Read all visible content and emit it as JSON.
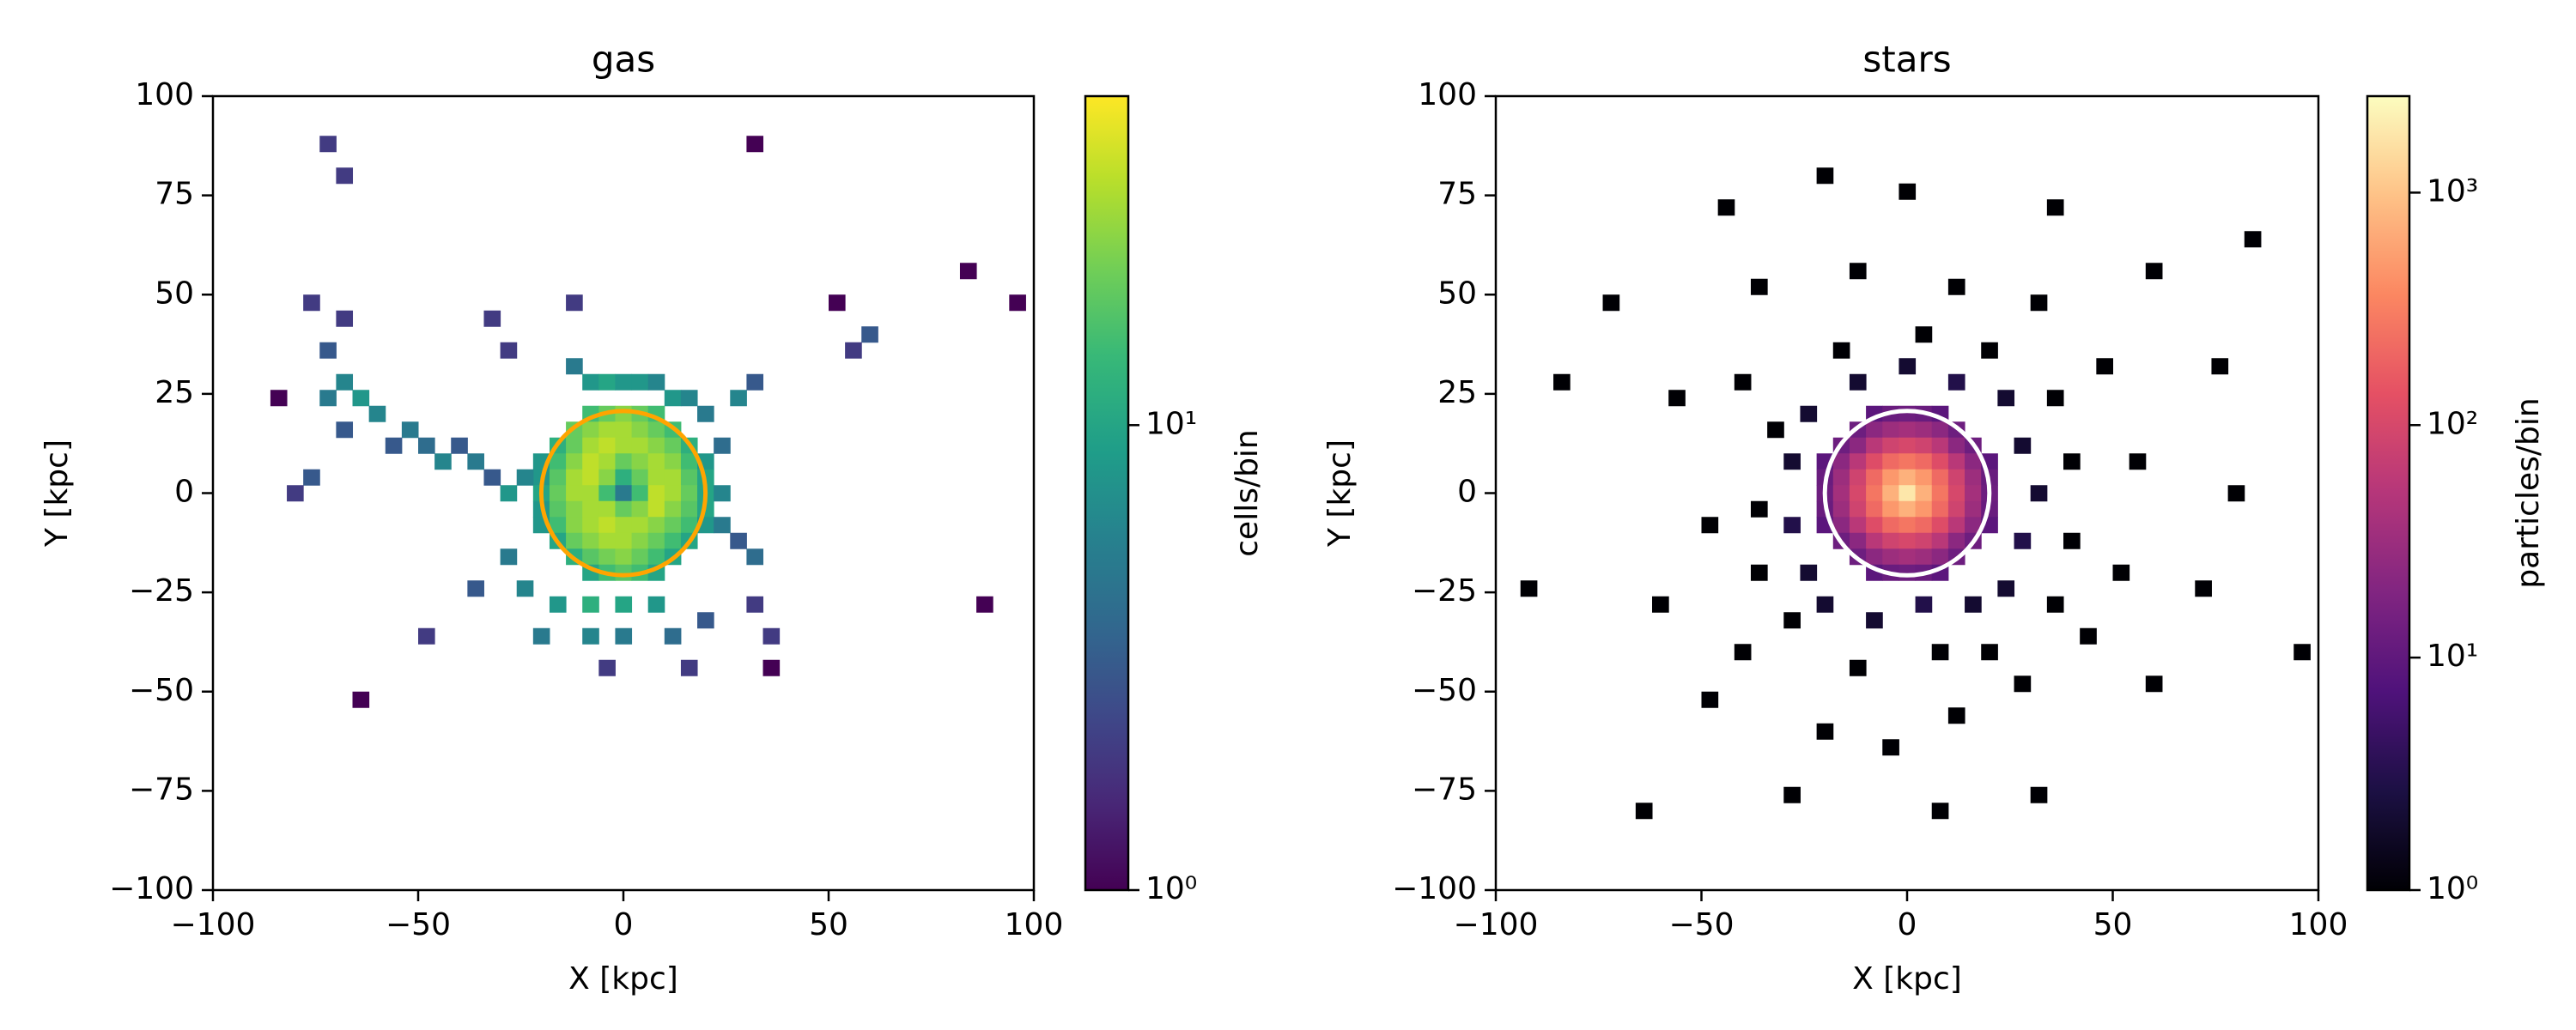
{
  "chart_data": [
    {
      "type": "heatmap",
      "title": "gas",
      "xlabel": "X [kpc]",
      "ylabel": "Y [kpc]",
      "xlim": [
        -100,
        100
      ],
      "ylim": [
        -100,
        100
      ],
      "xticks": [
        {
          "value": -100,
          "label": "−100"
        },
        {
          "value": -50,
          "label": "−50"
        },
        0,
        50,
        100
      ],
      "yticks": [
        {
          "value": -100,
          "label": "−100"
        },
        {
          "value": -75,
          "label": "−75"
        },
        {
          "value": -50,
          "label": "−50"
        },
        {
          "value": -25,
          "label": "−25"
        },
        0,
        25,
        50,
        75,
        100
      ],
      "bin_width": 4,
      "colormap": "viridis",
      "x": [
        -8,
        -4,
        0,
        4,
        8,
        -12,
        -8,
        -4,
        0,
        4,
        8,
        12,
        -16,
        -12,
        -8,
        -4,
        0,
        4,
        8,
        12,
        16,
        -20,
        -16,
        -12,
        -8,
        -4,
        0,
        4,
        8,
        12,
        16,
        20,
        -20,
        -16,
        -12,
        -8,
        -4,
        0,
        4,
        8,
        12,
        16,
        20,
        -20,
        -16,
        -12,
        -8,
        -4,
        0,
        4,
        8,
        12,
        16,
        20,
        -20,
        -16,
        -12,
        -8,
        -4,
        0,
        4,
        8,
        12,
        16,
        20,
        -20,
        -16,
        -12,
        -8,
        -4,
        0,
        4,
        8,
        12,
        16,
        20,
        -16,
        -12,
        -8,
        -4,
        0,
        4,
        8,
        12,
        16,
        -12,
        -8,
        -4,
        0,
        4,
        8,
        12,
        -8,
        -4,
        0,
        4,
        8,
        -24,
        -28,
        -32,
        -36,
        -40,
        -44,
        -48,
        -52,
        -56,
        -60,
        -64,
        -68,
        -72,
        -68,
        -72,
        -68,
        -76,
        -80,
        -76,
        -84,
        -12,
        -8,
        -4,
        0,
        4,
        8,
        12,
        16,
        20,
        28,
        32,
        -12,
        -28,
        -32,
        -72,
        -68,
        24,
        24,
        24,
        28,
        32,
        32,
        36,
        36,
        -36,
        -28,
        -24,
        -16,
        -8,
        0,
        8,
        -20,
        -8,
        0,
        12,
        20,
        16,
        -4,
        -48,
        -64,
        60,
        56,
        84,
        96,
        88,
        32,
        52
      ],
      "y": [
        20,
        20,
        20,
        20,
        20,
        16,
        16,
        16,
        16,
        16,
        16,
        16,
        12,
        12,
        12,
        12,
        12,
        12,
        12,
        12,
        12,
        8,
        8,
        8,
        8,
        8,
        8,
        8,
        8,
        8,
        8,
        8,
        4,
        4,
        4,
        4,
        4,
        4,
        4,
        4,
        4,
        4,
        4,
        0,
        0,
        0,
        0,
        0,
        0,
        0,
        0,
        0,
        0,
        0,
        -4,
        -4,
        -4,
        -4,
        -4,
        -4,
        -4,
        -4,
        -4,
        -4,
        -4,
        -8,
        -8,
        -8,
        -8,
        -8,
        -8,
        -8,
        -8,
        -8,
        -8,
        -8,
        -12,
        -12,
        -12,
        -12,
        -12,
        -12,
        -12,
        -12,
        -12,
        -16,
        -16,
        -16,
        -16,
        -16,
        -16,
        -16,
        -20,
        -20,
        -20,
        -20,
        -20,
        4,
        0,
        4,
        8,
        12,
        8,
        12,
        16,
        12,
        20,
        24,
        28,
        24,
        16,
        36,
        44,
        48,
        0,
        4,
        24,
        32,
        28,
        28,
        28,
        28,
        28,
        24,
        24,
        20,
        24,
        28,
        48,
        36,
        44,
        88,
        80,
        12,
        0,
        -8,
        -12,
        -16,
        -28,
        -36,
        -44,
        -24,
        -16,
        -24,
        -28,
        -28,
        -28,
        -28,
        -36,
        -36,
        -36,
        -36,
        -32,
        -44,
        -44,
        -36,
        -52,
        40,
        36,
        56,
        48,
        -28,
        88,
        48
      ],
      "values": [
        15,
        20,
        25,
        20,
        15,
        20,
        25,
        30,
        30,
        25,
        20,
        15,
        12,
        20,
        30,
        35,
        30,
        30,
        25,
        20,
        12,
        8,
        15,
        25,
        35,
        30,
        20,
        25,
        30,
        25,
        15,
        8,
        8,
        18,
        30,
        35,
        25,
        12,
        20,
        30,
        30,
        18,
        10,
        10,
        20,
        30,
        30,
        15,
        5,
        15,
        35,
        30,
        20,
        10,
        8,
        18,
        25,
        30,
        30,
        20,
        25,
        35,
        25,
        18,
        10,
        8,
        15,
        25,
        30,
        35,
        30,
        30,
        25,
        20,
        15,
        8,
        10,
        20,
        25,
        30,
        30,
        25,
        20,
        15,
        10,
        12,
        18,
        22,
        25,
        20,
        15,
        10,
        10,
        15,
        18,
        15,
        10,
        6,
        8,
        3,
        5,
        3,
        6,
        4,
        5,
        3,
        6,
        8,
        6,
        5,
        3,
        3,
        2,
        2,
        2,
        3,
        1,
        5,
        8,
        10,
        8,
        8,
        6,
        8,
        6,
        5,
        6,
        3,
        2,
        2,
        2,
        2,
        2,
        4,
        6,
        5,
        3,
        4,
        2,
        2,
        1,
        3,
        5,
        6,
        8,
        12,
        10,
        8,
        5,
        6,
        5,
        4,
        3,
        2,
        2,
        2,
        1,
        3,
        2,
        1,
        1,
        1,
        1,
        1
      ],
      "colorbar": {
        "label": "cells/bin",
        "scale": "log",
        "lim": [
          1,
          51
        ],
        "ticks": [
          {
            "value": 1,
            "label": "10⁰"
          },
          {
            "value": 10,
            "label": "10¹"
          }
        ]
      },
      "circle": {
        "center": [
          0,
          0
        ],
        "radius": 20,
        "color": "#ffa500"
      }
    },
    {
      "type": "heatmap",
      "title": "stars",
      "xlabel": "X [kpc]",
      "ylabel": "Y [kpc]",
      "xlim": [
        -100,
        100
      ],
      "ylim": [
        -100,
        100
      ],
      "xticks": [
        {
          "value": -100,
          "label": "−100"
        },
        {
          "value": -50,
          "label": "−50"
        },
        0,
        50,
        100
      ],
      "yticks": [
        {
          "value": -100,
          "label": "−100"
        },
        {
          "value": -75,
          "label": "−75"
        },
        {
          "value": -50,
          "label": "−50"
        },
        {
          "value": -25,
          "label": "−25"
        },
        0,
        25,
        50,
        75,
        100
      ],
      "bin_width": 4,
      "colormap": "magma",
      "x": [
        -8,
        -4,
        0,
        4,
        8,
        -12,
        -8,
        -4,
        0,
        4,
        8,
        12,
        -16,
        -12,
        -8,
        -4,
        0,
        4,
        8,
        12,
        16,
        -20,
        -16,
        -12,
        -8,
        -4,
        0,
        4,
        8,
        12,
        16,
        20,
        -20,
        -16,
        -12,
        -8,
        -4,
        0,
        4,
        8,
        12,
        16,
        20,
        -20,
        -16,
        -12,
        -8,
        -4,
        0,
        4,
        8,
        12,
        16,
        20,
        -20,
        -16,
        -12,
        -8,
        -4,
        0,
        4,
        8,
        12,
        16,
        20,
        -20,
        -16,
        -12,
        -8,
        -4,
        0,
        4,
        8,
        12,
        16,
        20,
        -16,
        -12,
        -8,
        -4,
        0,
        4,
        8,
        12,
        16,
        -12,
        -8,
        -4,
        0,
        4,
        8,
        12,
        -8,
        -4,
        0,
        4,
        8,
        -24,
        -28,
        -28,
        -24,
        -20,
        -8,
        4,
        16,
        24,
        28,
        32,
        28,
        24,
        12,
        0,
        -12,
        -32,
        -36,
        -36,
        -28,
        -12,
        8,
        20,
        36,
        40,
        40,
        36,
        20,
        4,
        -16,
        -40,
        -48,
        -40,
        -20,
        -4,
        12,
        28,
        44,
        52,
        56,
        48,
        32,
        12,
        -12,
        -36,
        -56,
        -60,
        -48,
        -28,
        8,
        32,
        60,
        72,
        80,
        76,
        60,
        36,
        0,
        -20,
        -44,
        -72,
        -84,
        -92,
        -64,
        84,
        96
      ],
      "y": [
        20,
        20,
        20,
        20,
        20,
        16,
        16,
        16,
        16,
        16,
        16,
        16,
        12,
        12,
        12,
        12,
        12,
        12,
        12,
        12,
        12,
        8,
        8,
        8,
        8,
        8,
        8,
        8,
        8,
        8,
        8,
        8,
        4,
        4,
        4,
        4,
        4,
        4,
        4,
        4,
        4,
        4,
        4,
        0,
        0,
        0,
        0,
        0,
        0,
        0,
        0,
        0,
        0,
        0,
        -4,
        -4,
        -4,
        -4,
        -4,
        -4,
        -4,
        -4,
        -4,
        -4,
        -4,
        -8,
        -8,
        -8,
        -8,
        -8,
        -8,
        -8,
        -8,
        -8,
        -8,
        -8,
        -12,
        -12,
        -12,
        -12,
        -12,
        -12,
        -12,
        -12,
        -12,
        -16,
        -16,
        -16,
        -16,
        -16,
        -16,
        -16,
        -20,
        -20,
        -20,
        -20,
        -20,
        20,
        8,
        -8,
        -20,
        -28,
        -32,
        -28,
        -28,
        -24,
        -12,
        0,
        12,
        24,
        28,
        32,
        28,
        16,
        -4,
        -20,
        -32,
        -44,
        -40,
        -40,
        -28,
        -12,
        8,
        24,
        36,
        40,
        36,
        28,
        -8,
        -40,
        -60,
        -64,
        -56,
        -48,
        -36,
        -20,
        8,
        32,
        48,
        52,
        56,
        52,
        24,
        -28,
        -52,
        -76,
        -80,
        -76,
        -48,
        -24,
        0,
        32,
        56,
        72,
        76,
        80,
        72,
        48,
        28,
        -24,
        -80,
        64,
        -40
      ],
      "values": [
        9,
        12,
        13,
        12,
        9,
        13,
        23,
        32,
        37,
        32,
        23,
        13,
        13,
        23,
        55,
        85,
        100,
        85,
        55,
        23,
        13,
        9,
        23,
        55,
        118,
        215,
        270,
        215,
        118,
        55,
        23,
        9,
        12,
        32,
        85,
        215,
        486,
        736,
        486,
        215,
        85,
        32,
        12,
        13,
        37,
        100,
        270,
        736,
        1800,
        736,
        270,
        100,
        37,
        13,
        12,
        32,
        85,
        215,
        486,
        736,
        486,
        215,
        85,
        32,
        12,
        9,
        23,
        55,
        118,
        215,
        270,
        215,
        118,
        55,
        23,
        9,
        13,
        23,
        55,
        85,
        100,
        85,
        55,
        23,
        13,
        13,
        23,
        32,
        37,
        32,
        23,
        13,
        9,
        12,
        13,
        12,
        9,
        2,
        2,
        3,
        2,
        2,
        2,
        3,
        2,
        2,
        3,
        2,
        2,
        2,
        3,
        2,
        2,
        1,
        1,
        1,
        1,
        1,
        1,
        1,
        1,
        1,
        1,
        1,
        1,
        1,
        1,
        1,
        1,
        1,
        1,
        1,
        1,
        1,
        1,
        1,
        1,
        1,
        1,
        1,
        1,
        1,
        1,
        1,
        1,
        1,
        1,
        1,
        1,
        1,
        1,
        1,
        1,
        1,
        1,
        1,
        1,
        1,
        1,
        1,
        1,
        1,
        1
      ],
      "colorbar": {
        "label": "particles/bin",
        "scale": "log",
        "lim": [
          1,
          2600
        ],
        "ticks": [
          {
            "value": 1,
            "label": "10⁰"
          },
          {
            "value": 10,
            "label": "10¹"
          },
          {
            "value": 100,
            "label": "10²"
          },
          {
            "value": 1000,
            "label": "10³"
          }
        ]
      },
      "circle": {
        "center": [
          0,
          0
        ],
        "radius": 20,
        "color": "#ffffff"
      }
    }
  ]
}
